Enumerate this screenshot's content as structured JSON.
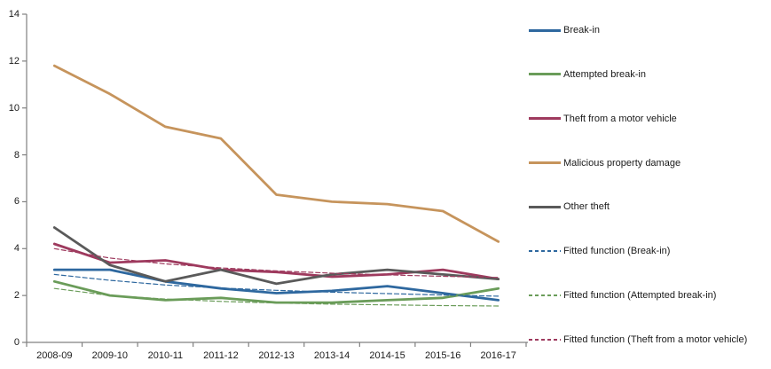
{
  "chart_data": {
    "type": "line",
    "title": "",
    "xlabel": "",
    "ylabel": "",
    "categories": [
      "2008-09",
      "2009-10",
      "2010-11",
      "2011-12",
      "2012-13",
      "2013-14",
      "2014-15",
      "2015-16",
      "2016-17"
    ],
    "yticks": [
      0,
      2,
      4,
      6,
      8,
      10,
      12,
      14
    ],
    "ylim": [
      0,
      14
    ],
    "grid": false,
    "legend_position": "right",
    "axis_color": "#808080",
    "text_color": "#1a1a1a",
    "series": [
      {
        "name": "Break-in",
        "color": "#2E689F",
        "line_style": "solid",
        "values": [
          3.1,
          3.1,
          2.6,
          2.3,
          2.1,
          2.2,
          2.4,
          2.1,
          1.8
        ]
      },
      {
        "name": "Attempted break-in",
        "color": "#6A9C59",
        "line_style": "solid",
        "values": [
          2.6,
          2.0,
          1.8,
          1.9,
          1.7,
          1.7,
          1.8,
          1.9,
          2.3
        ]
      },
      {
        "name": "Theft from a motor vehicle",
        "color": "#9E3A5E",
        "line_style": "solid",
        "values": [
          4.2,
          3.4,
          3.5,
          3.1,
          3.0,
          2.8,
          2.9,
          3.1,
          2.7
        ]
      },
      {
        "name": "Malicious property damage",
        "color": "#C6945C",
        "line_style": "solid",
        "values": [
          11.8,
          10.6,
          9.2,
          8.7,
          6.3,
          6.0,
          5.9,
          5.6,
          4.3
        ]
      },
      {
        "name": "Other theft",
        "color": "#5A5A5A",
        "line_style": "solid",
        "values": [
          4.9,
          3.3,
          2.6,
          3.1,
          2.5,
          2.9,
          3.1,
          2.9,
          2.7
        ]
      },
      {
        "name": "Fitted function (Break-in)",
        "color": "#2E689F",
        "line_style": "dashed",
        "values": [
          2.9,
          2.65,
          2.45,
          2.32,
          2.22,
          2.14,
          2.08,
          2.02,
          1.97
        ]
      },
      {
        "name": "Fitted function (Attempted break-in)",
        "color": "#6A9C59",
        "line_style": "dashed",
        "values": [
          2.3,
          2.0,
          1.85,
          1.75,
          1.68,
          1.63,
          1.6,
          1.57,
          1.55
        ]
      },
      {
        "name": "Fitted function (Theft from a motor vehicle)",
        "color": "#9E3A5E",
        "line_style": "dashed",
        "values": [
          4.0,
          3.6,
          3.35,
          3.18,
          3.05,
          2.95,
          2.88,
          2.82,
          2.77
        ]
      }
    ]
  }
}
